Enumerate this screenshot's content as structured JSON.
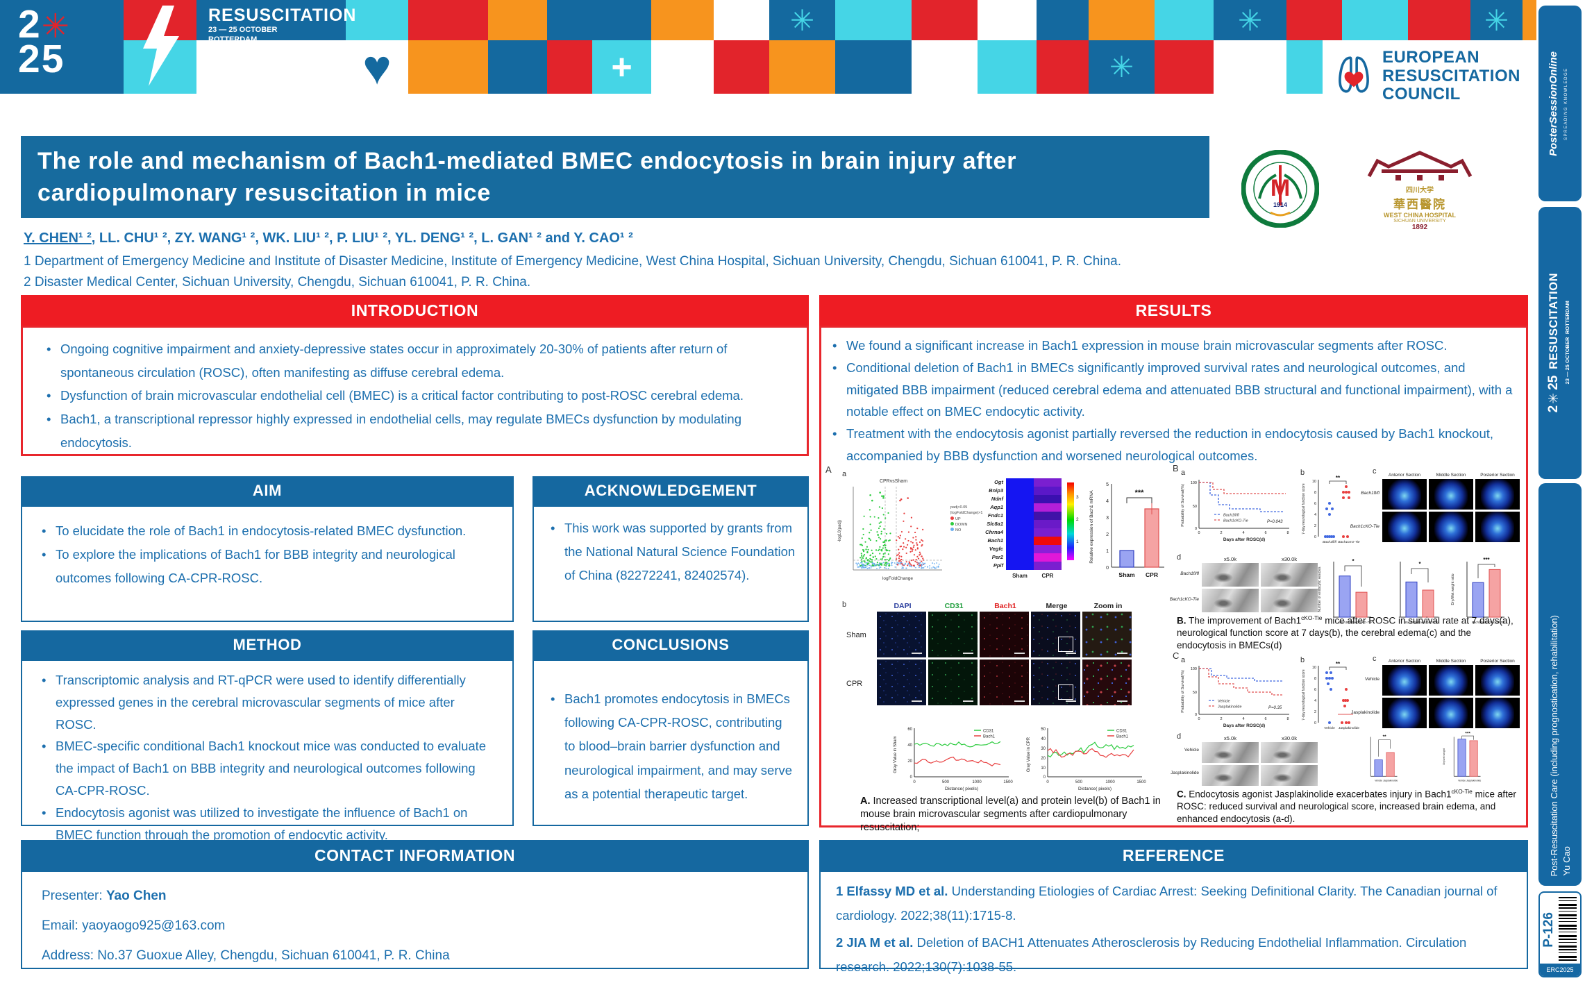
{
  "banner": {
    "year_top": "2",
    "year_star": "✳",
    "year_bottom": "25",
    "event_title": "RESUSCITATION",
    "event_dates": "23 — 25 OCTOBER",
    "event_city": "ROTTERDAM",
    "erc_line1": "EUROPEAN",
    "erc_line2": "RESUSCITATION",
    "erc_line3": "COUNCIL"
  },
  "logos": {
    "scu_initial": "M",
    "scu_year": "1914",
    "wch_cn1": "四川大学",
    "wch_cn2": "華西醫院",
    "wch_en1": "WEST CHINA HOSPITAL",
    "wch_en2": "SICHUAN UNIVERSITY",
    "wch_year": "1892"
  },
  "header": {
    "title_line1": "The role and mechanism of Bach1-mediated BMEC endocytosis in brain injury after",
    "title_line2": "cardiopulmonary resuscitation in mice",
    "authors_presenter": "Y. CHEN¹ ²",
    "authors_rest": ", LL. CHU¹ ², ZY. WANG¹ ², WK. LIU¹ ², P. LIU¹ ², YL. DENG¹ ², L. GAN¹ ² and Y. CAO¹ ²",
    "affiliation1": "1 Department of Emergency Medicine and Institute of Disaster Medicine, Institute of Emergency Medicine, West China Hospital, Sichuan University, Chengdu, Sichuan 610041, P. R. China.",
    "affiliation2": "2 Disaster Medical Center, Sichuan University, Chengdu, Sichuan 610041, P. R. China."
  },
  "introduction": {
    "title": "INTRODUCTION",
    "bullets": [
      "Ongoing cognitive impairment and anxiety-depressive states occur in approximately 20-30% of patients after return of spontaneous circulation (ROSC), often manifesting as diffuse cerebral edema.",
      "Dysfunction of brain microvascular endothelial cell (BMEC) is a critical factor contributing to post-ROSC cerebral edema.",
      "Bach1, a transcriptional repressor highly expressed in endothelial cells, may regulate BMECs dysfunction by modulating endocytosis."
    ]
  },
  "aim": {
    "title": "AIM",
    "bullets": [
      "To elucidate the role of Bach1 in endocytosis-related BMEC dysfunction.",
      "To explore the implications of Bach1 for BBB integrity and neurological outcomes following CA-CPR-ROSC."
    ]
  },
  "acknowledgement": {
    "title": "ACKNOWLEDGEMENT",
    "bullets": [
      "This work was supported by grants from the National Natural Science Foundation of China (82272241, 82402574)."
    ]
  },
  "method": {
    "title": "METHOD",
    "bullets": [
      "Transcriptomic analysis and RT-qPCR were used to identify differentially expressed genes in the cerebral microvascular segments of mice after ROSC.",
      "BMEC-specific conditional Bach1 knockout mice was conducted to evaluate the impact of Bach1 on BBB integrity and neurological outcomes following CA-CPR-ROSC.",
      "Endocytosis agonist was utilized to investigate the influence of Bach1 on BMEC function through the promotion of endocytic activity."
    ]
  },
  "conclusions": {
    "title": "CONCLUSIONS",
    "bullets": [
      "Bach1 promotes endocytosis in BMECs following CA-CPR-ROSC, contributing to blood–brain barrier dysfunction and neurological impairment, and may serve as a potential therapeutic target."
    ]
  },
  "results": {
    "title": "RESULTS",
    "bullets": [
      "We found a significant increase in Bach1 expression in mouse brain microvascular segments after ROSC.",
      "Conditional deletion of Bach1 in BMECs significantly improved survival rates and neurological outcomes, and mitigated BBB impairment (reduced cerebral edema and attenuated BBB structural and functional impairment), with a notable effect on BMEC endocytic activity.",
      "Treatment with the endocytosis agonist partially reversed the reduction in endocytosis caused by Bach1 knockout, accompanied by BBB dysfunction and worsened neurological outcomes."
    ]
  },
  "contact": {
    "title": "CONTACT INFORMATION",
    "presenter_label": "Presenter: ",
    "presenter_name": "Yao Chen",
    "email_label": "Email: ",
    "email_value": "yaoyaogo925@163.com",
    "address_label": "Address: ",
    "address_value": "No.37 Guoxue Alley, Chengdu, Sichuan 610041, P. R. China"
  },
  "reference": {
    "title": "REFERENCE",
    "items": [
      {
        "lead": "1 Elfassy MD et al.",
        "text": " Understanding Etiologies of Cardiac Arrest: Seeking Definitional Clarity. The Canadian journal of cardiology. 2022;38(11):1715-8."
      },
      {
        "lead": "2 JIA M et al.",
        "text": " Deletion of BACH1 Attenuates Atherosclerosis by Reducing Endothelial Inflammation. Circulation research. 2022;130(7):1038-55."
      }
    ]
  },
  "figures": {
    "panelA": {
      "label": "A",
      "sub_a": "a",
      "sub_b": "b",
      "volcano": {
        "title": "CPRvsSham",
        "xlabel": "logFoldChange",
        "ylabel": "-log10(padj)",
        "legend_title1": "padj<0.05",
        "legend_title2": "|logFoldChange|>1",
        "legend": [
          "UP",
          "DOWN",
          "NO"
        ]
      },
      "heatmap": {
        "genes": [
          "Ogt",
          "Bnip3",
          "Ndnf",
          "Aqp1",
          "Fndc1",
          "Slc8a1",
          "Chrna4",
          "Bach1",
          "Vegfc",
          "Per2",
          "Ppif"
        ],
        "columns": [
          "Sham",
          "CPR"
        ],
        "colorbar_ticks": [
          "3",
          "2",
          "1"
        ]
      },
      "qpcr": {
        "ylabel": "Relative expression of Bach1 mRNA",
        "categories": [
          "Sham",
          "CPR"
        ],
        "values": [
          1.0,
          3.5
        ],
        "yticks": [
          "5",
          "4",
          "3",
          "2",
          "1",
          "0"
        ],
        "sig": "***"
      },
      "if_columns": [
        "DAPI",
        "CD31",
        "Bach1",
        "Merge",
        "Zoom in"
      ],
      "if_rows": [
        "Sham",
        "CPR"
      ],
      "profile_sham": {
        "ylabel": "Gray Value in Sham",
        "yticks": [
          "60",
          "40",
          "20",
          "0"
        ],
        "xticks": [
          "0",
          "500",
          "1000",
          "1500"
        ],
        "xlabel": "Distance( pixels)",
        "legend": [
          "CD31",
          "Bach1"
        ]
      },
      "profile_cpr": {
        "ylabel": "Gray Value in CPR",
        "yticks": [
          "50",
          "40",
          "30",
          "20",
          "10",
          "0"
        ],
        "xticks": [
          "0",
          "500",
          "1000",
          "1500"
        ],
        "xlabel": "Distance( pixels)",
        "legend": [
          "CD31",
          "Bach1"
        ]
      },
      "caption_lead": "A.",
      "caption_text": " Increased transcriptional level(a) and protein level(b) of Bach1 in mouse brain microvascular segments after cardiopulmonary resuscitation;"
    },
    "panelB": {
      "label": "B",
      "sub_a": "a",
      "sub_b": "b",
      "sub_c": "c",
      "sub_d": "d",
      "survival": {
        "ylabel": "Probability of Survival(%)",
        "xlabel": "Days after ROSC(d)",
        "yticks": [
          "100",
          "50",
          "0"
        ],
        "xticks": [
          "0",
          "2",
          "4",
          "6",
          "8"
        ],
        "legend": [
          "Bach1fl/fl",
          "Bach1cKO-Tie"
        ],
        "pvalue": "P=0.043"
      },
      "score": {
        "ylabel": "7-day neurological function score",
        "yticks": [
          "10",
          "8",
          "6",
          "4",
          "2",
          "0"
        ],
        "sig": "**",
        "groups": [
          "Bach1fl/fl",
          "Bach1cKO-Tie"
        ]
      },
      "sections": [
        "Anterior Section",
        "Middle Section",
        "Posterior Section"
      ],
      "row_labels": [
        "Bach1fl/fl",
        "Bach1cKO-Tie"
      ],
      "em_mags": [
        "x5.0k",
        "x30.0k"
      ],
      "bars": [
        {
          "ylabel": "Number of endocytic vesicles",
          "values": [
            19,
            11.5
          ],
          "sig": "*"
        },
        {
          "ylabel": "",
          "values": [
            5200,
            4000
          ],
          "sig": "*"
        },
        {
          "ylabel": "Dry/Wet weight ratio",
          "values": [
            0.16,
            0.22
          ],
          "sig": "***"
        }
      ],
      "caption_lead": "B.",
      "caption_pre": " The improvement of Bach1",
      "caption_sup": "cKO-Tie",
      "caption_post": " mice after ROSC in survival rate at 7 days(a), neurological function score at 7 days(b), the cerebral edema(c) and the endocytosis in BMECs(d)"
    },
    "panelC": {
      "label": "C",
      "sub_a": "a",
      "sub_b": "b",
      "sub_c": "c",
      "sub_d": "d",
      "survival": {
        "ylabel": "Probability of Survival(%)",
        "xlabel": "Days after ROSC(d)",
        "yticks": [
          "100",
          "50",
          "0"
        ],
        "xticks": [
          "0",
          "2",
          "4",
          "6",
          "8"
        ],
        "legend": [
          "Vehicle",
          "Jasplakinolide"
        ],
        "pvalue": "P=0.35"
      },
      "score": {
        "ylabel": "7-day neurological function score",
        "yticks": [
          "10",
          "8",
          "6",
          "4",
          "2",
          "0"
        ],
        "sig": "**",
        "groups": [
          "Vehicle",
          "Jasplakinolide"
        ]
      },
      "sections": [
        "Anterior Section",
        "Middle Section",
        "Posterior Section"
      ],
      "row_labels": [
        "Vehicle",
        "Jasplakinolide"
      ],
      "em_mags": [
        "x5.0k",
        "x30.0k"
      ],
      "bars": [
        {
          "ylabel": "",
          "values": [
            4300,
            6200
          ],
          "sig": "**"
        },
        {
          "ylabel": "Dry/wet weight",
          "values": [
            1.21,
            1.16
          ],
          "sig": "***"
        }
      ],
      "caption_lead": "C.",
      "caption_pre": " Endocytosis agonist Jasplakinolide exacerbates injury in Bach1",
      "caption_sup": "cKO-Tie",
      "caption_post": " mice after ROSC: reduced survival and neurological score, increased brain edema, and enhanced endocytosis (a-d)."
    }
  },
  "sidebar": {
    "pso_line1": "Poster",
    "pso_line2": "SessionOnline",
    "pso_tag": "SPREADING KNOWLEDGE",
    "event_year": "2✳25",
    "event_title": "RESUSCITATION",
    "event_dates": "23 — 25 OCTOBER",
    "event_city": "ROTTERDAM",
    "track": "Post-Resuscitation Care (including prognostication, rehabilitation)",
    "author": "Yu Cao",
    "poster_id": "P-126",
    "code": "ERC2025"
  },
  "colors": {
    "accent_red": "#EE1C23",
    "accent_blue": "#1568A0",
    "title_bar": "#176B9E",
    "body_text": "#1C6FAE"
  }
}
